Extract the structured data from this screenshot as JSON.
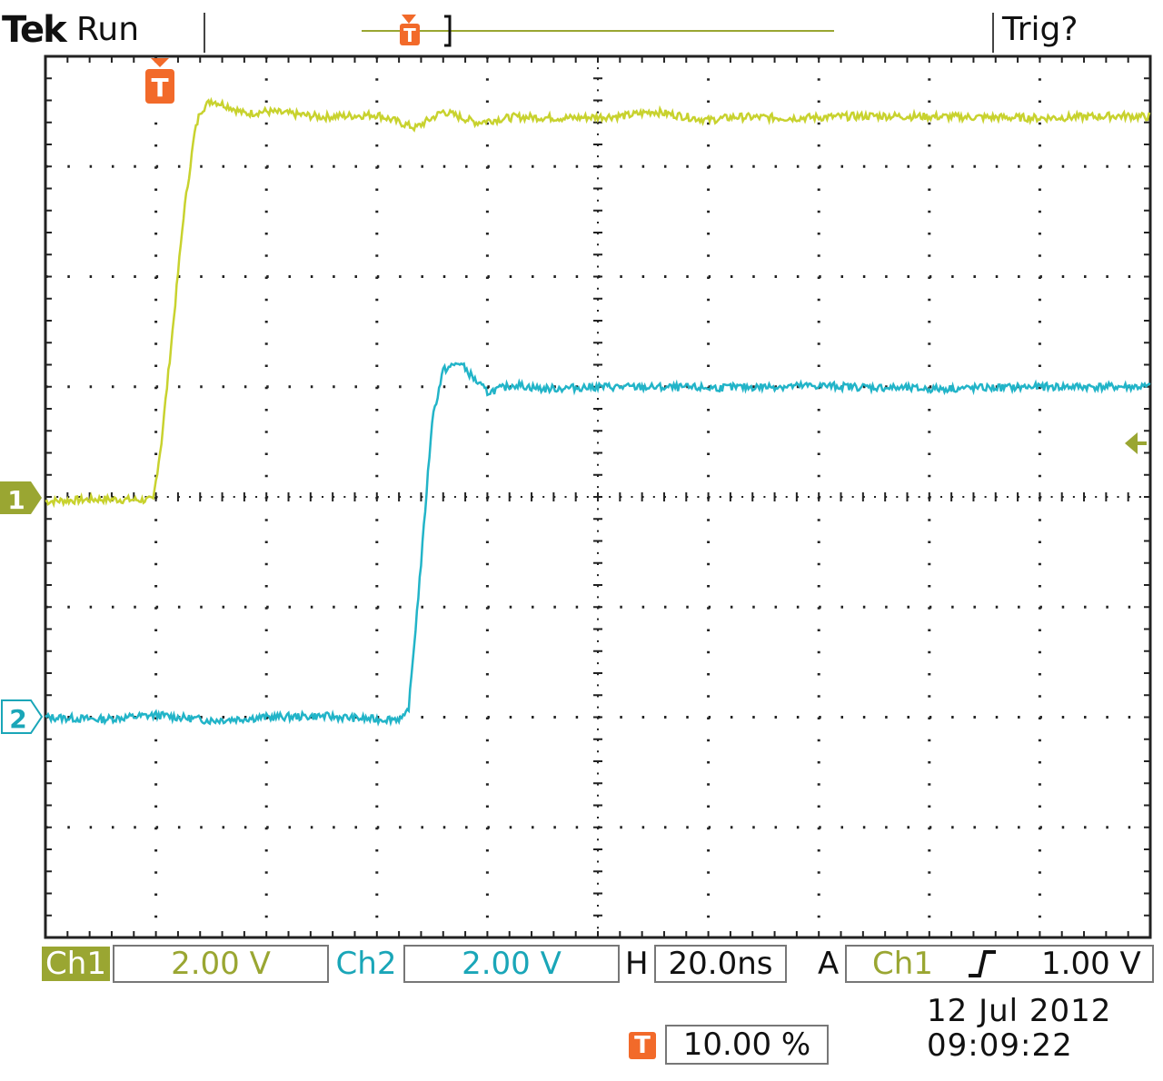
{
  "header": {
    "brand": "Tek",
    "state": "Run",
    "trigger_status": "Trig?"
  },
  "footer": {
    "ch1_label": "Ch1",
    "ch1_scale": "2.00 V",
    "ch2_label": "Ch2",
    "ch2_scale": "2.00 V",
    "h_label": "H",
    "h_scale": "20.0ns",
    "a_label": "A",
    "trigger_source": "Ch1",
    "trigger_slope_icon": "rising-edge-icon",
    "trigger_level": "1.00 V",
    "trigger_position_icon": "T",
    "trigger_position": "10.00 %",
    "date": "12 Jul   2012",
    "time": "09:09:22"
  },
  "markers": {
    "ch1": "1",
    "ch2": "2",
    "trigger": "T"
  },
  "colors": {
    "ch1": "#c8d22e",
    "ch2": "#22b4c8",
    "trigger": "#f26a2a",
    "grid": "#222222"
  },
  "chart_data": {
    "type": "line",
    "title": "",
    "xlabel": "",
    "ylabel": "",
    "x_divisions": 10,
    "y_divisions": 8,
    "time_per_div_ns": 20,
    "x_units": "ns",
    "xlim": [
      -20,
      180
    ],
    "y_units": "div",
    "ylim": [
      -4,
      4
    ],
    "grid": true,
    "series": [
      {
        "x": [
          -20,
          -10,
          -0.5,
          1,
          3,
          5,
          7,
          8,
          10,
          13,
          16,
          20,
          30,
          40,
          47,
          52,
          58,
          65,
          75,
          85,
          90,
          100,
          105,
          115,
          130,
          145,
          160,
          175,
          180
        ],
        "y": [
          -0.04,
          -0.02,
          -0.03,
          0.5,
          1.5,
          2.55,
          3.3,
          3.5,
          3.6,
          3.55,
          3.48,
          3.5,
          3.45,
          3.47,
          3.35,
          3.5,
          3.4,
          3.45,
          3.44,
          3.46,
          3.5,
          3.42,
          3.45,
          3.44,
          3.46,
          3.45,
          3.44,
          3.46,
          3.45
        ]
      },
      {
        "x": [
          -20,
          -10,
          0,
          10,
          20,
          30,
          40,
          45,
          45.8,
          48,
          50,
          52,
          55,
          58,
          60,
          65,
          70,
          80,
          100,
          120,
          140,
          160,
          180
        ],
        "y": [
          -2.0,
          -2.02,
          -1.98,
          -2.03,
          -2.0,
          -1.99,
          -2.02,
          -2.01,
          -1.9,
          -0.6,
          0.7,
          1.15,
          1.22,
          1.05,
          0.95,
          1.02,
          0.98,
          1.0,
          0.99,
          1.01,
          0.98,
          1.0,
          1.0
        ]
      }
    ]
  }
}
